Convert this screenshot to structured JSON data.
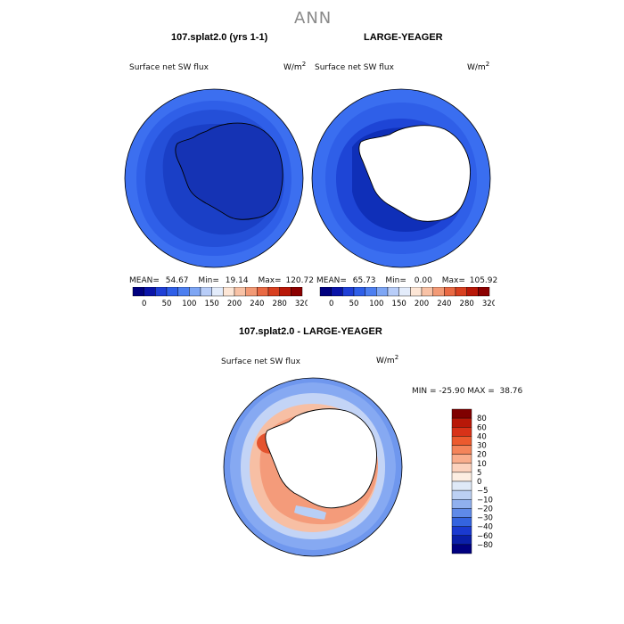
{
  "figure": {
    "title": "ANN"
  },
  "panels": [
    {
      "title": "107.splat2.0 (yrs 1-1)",
      "variable": "Surface net SW flux",
      "units_base": "W/m",
      "units_exp": "2",
      "stats": {
        "mean_label": "MEAN=",
        "mean": "54.67",
        "min_label": "Min=",
        "min": "19.14",
        "max_label": "Max=",
        "max": "120.72"
      }
    },
    {
      "title": "LARGE-YEAGER",
      "variable": "Surface net SW flux",
      "units_base": "W/m",
      "units_exp": "2",
      "stats": {
        "mean_label": "MEAN=",
        "mean": "65.73",
        "min_label": "Min=",
        "min": "0.00",
        "max_label": "Max=",
        "max": "105.92"
      }
    },
    {
      "title": "107.splat2.0 - LARGE-YEAGER",
      "variable": "Surface net SW flux",
      "units_base": "W/m",
      "units_exp": "2",
      "stats": {
        "text": "MIN = -25.90 MAX =  38.76"
      }
    }
  ],
  "chart_data": [
    {
      "type": "heatmap",
      "projection": "south polar stereographic",
      "title": "107.splat2.0 (yrs 1-1)",
      "variable": "Surface net SW flux",
      "units": "W/m^2",
      "summary": {
        "mean": 54.67,
        "min": 19.14,
        "max": 120.72
      },
      "colorbar": {
        "levels": [
          0,
          50,
          100,
          150,
          200,
          240,
          280,
          320
        ],
        "colors": [
          "#00007f",
          "#0a14a8",
          "#1f3fd6",
          "#2f5fe8",
          "#4d7ff0",
          "#7ea6f4",
          "#b8cdf8",
          "#e3ecfb",
          "#fde6d6",
          "#f8c2a6",
          "#f29a76",
          "#e96a44",
          "#d84020",
          "#b81808",
          "#8b0000"
        ]
      }
    },
    {
      "type": "heatmap",
      "projection": "south polar stereographic",
      "title": "LARGE-YEAGER",
      "variable": "Surface net SW flux",
      "units": "W/m^2",
      "summary": {
        "mean": 65.73,
        "min": 0.0,
        "max": 105.92
      },
      "colorbar": {
        "levels": [
          0,
          50,
          100,
          150,
          200,
          240,
          280,
          320
        ],
        "colors": [
          "#00007f",
          "#0a14a8",
          "#1f3fd6",
          "#2f5fe8",
          "#4d7ff0",
          "#7ea6f4",
          "#b8cdf8",
          "#e3ecfb",
          "#fde6d6",
          "#f8c2a6",
          "#f29a76",
          "#e96a44",
          "#d84020",
          "#b81808",
          "#8b0000"
        ]
      }
    },
    {
      "type": "heatmap",
      "projection": "south polar stereographic",
      "title": "107.splat2.0 - LARGE-YEAGER",
      "variable": "Surface net SW flux",
      "units": "W/m^2",
      "summary": {
        "min": -25.9,
        "max": 38.76
      },
      "colorbar": {
        "orientation": "vertical",
        "levels": [
          "80",
          "60",
          "40",
          "30",
          "20",
          "10",
          "5",
          "0",
          "−5",
          "−10",
          "−20",
          "−30",
          "−40",
          "−60",
          "−80"
        ],
        "colors": [
          "#7f0000",
          "#b81808",
          "#d83218",
          "#ec5a2e",
          "#f4845a",
          "#f9ad8c",
          "#fcd2bd",
          "#fdeee2",
          "#dfe9f7",
          "#bcd0f3",
          "#90b0ee",
          "#5f8ae8",
          "#3464df",
          "#1a3ad0",
          "#0a1fa8",
          "#000080"
        ]
      }
    }
  ]
}
